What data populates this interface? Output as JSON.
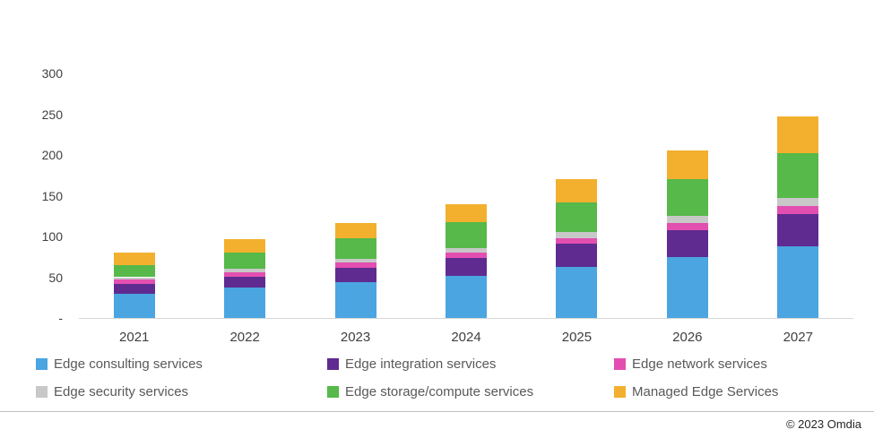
{
  "chart_data": {
    "type": "bar",
    "stacked": true,
    "title": "",
    "xlabel": "",
    "ylabel": "",
    "categories": [
      "2021",
      "2022",
      "2023",
      "2024",
      "2025",
      "2026",
      "2027"
    ],
    "series": [
      {
        "name": "Edge consulting services",
        "color": "#4BA5E1",
        "values": [
          30,
          37,
          44,
          52,
          63,
          75,
          88
        ]
      },
      {
        "name": "Edge integration services",
        "color": "#5F2B90",
        "values": [
          12,
          14,
          18,
          22,
          28,
          33,
          40
        ]
      },
      {
        "name": "Edge network services",
        "color": "#E34FB0",
        "values": [
          5,
          5,
          6,
          6,
          7,
          8,
          9
        ]
      },
      {
        "name": "Edge security services",
        "color": "#C8C8C8",
        "values": [
          3,
          4,
          5,
          6,
          7,
          9,
          10
        ]
      },
      {
        "name": "Edge storage/compute services",
        "color": "#56B949",
        "values": [
          15,
          20,
          25,
          32,
          37,
          45,
          55
        ]
      },
      {
        "name": "Managed Edge Services",
        "color": "#F2B02E",
        "values": [
          15,
          17,
          19,
          22,
          28,
          35,
          45
        ]
      }
    ],
    "ylim": [
      0,
      300
    ],
    "ytick_interval": 50,
    "ytick_labels": [
      "-",
      "50",
      "100",
      "150",
      "200",
      "250",
      "300"
    ],
    "grid": false,
    "legend_position": "bottom"
  },
  "footer": {
    "copyright": "© 2023 Omdia"
  }
}
